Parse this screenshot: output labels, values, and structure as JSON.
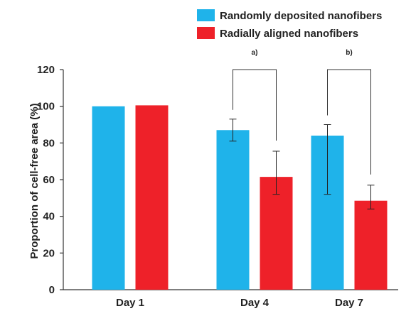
{
  "chart_data": {
    "type": "bar",
    "title": "",
    "xlabel": "",
    "ylabel": "Proportion of cell-free area (%)",
    "ylim": [
      0,
      120
    ],
    "yticks": [
      0,
      20,
      40,
      60,
      80,
      100,
      120
    ],
    "categories": [
      "Day 1",
      "Day 4",
      "Day 7"
    ],
    "series": [
      {
        "name": "Randomly deposited nanofibers",
        "color": "#1fb3ea",
        "values": [
          100,
          87,
          84
        ],
        "err_low": [
          null,
          81,
          52
        ],
        "err_high": [
          null,
          93,
          90
        ]
      },
      {
        "name": "Radially aligned nanofibers",
        "color": "#ee2129",
        "values": [
          100.5,
          61.5,
          48.5
        ],
        "err_low": [
          null,
          52,
          44
        ],
        "err_high": [
          null,
          75.5,
          57
        ]
      }
    ],
    "legend_position": "top-right",
    "annotations": [
      {
        "text": "a)",
        "category": "Day 4"
      },
      {
        "text": "b)",
        "category": "Day 7"
      }
    ],
    "grid": false
  }
}
